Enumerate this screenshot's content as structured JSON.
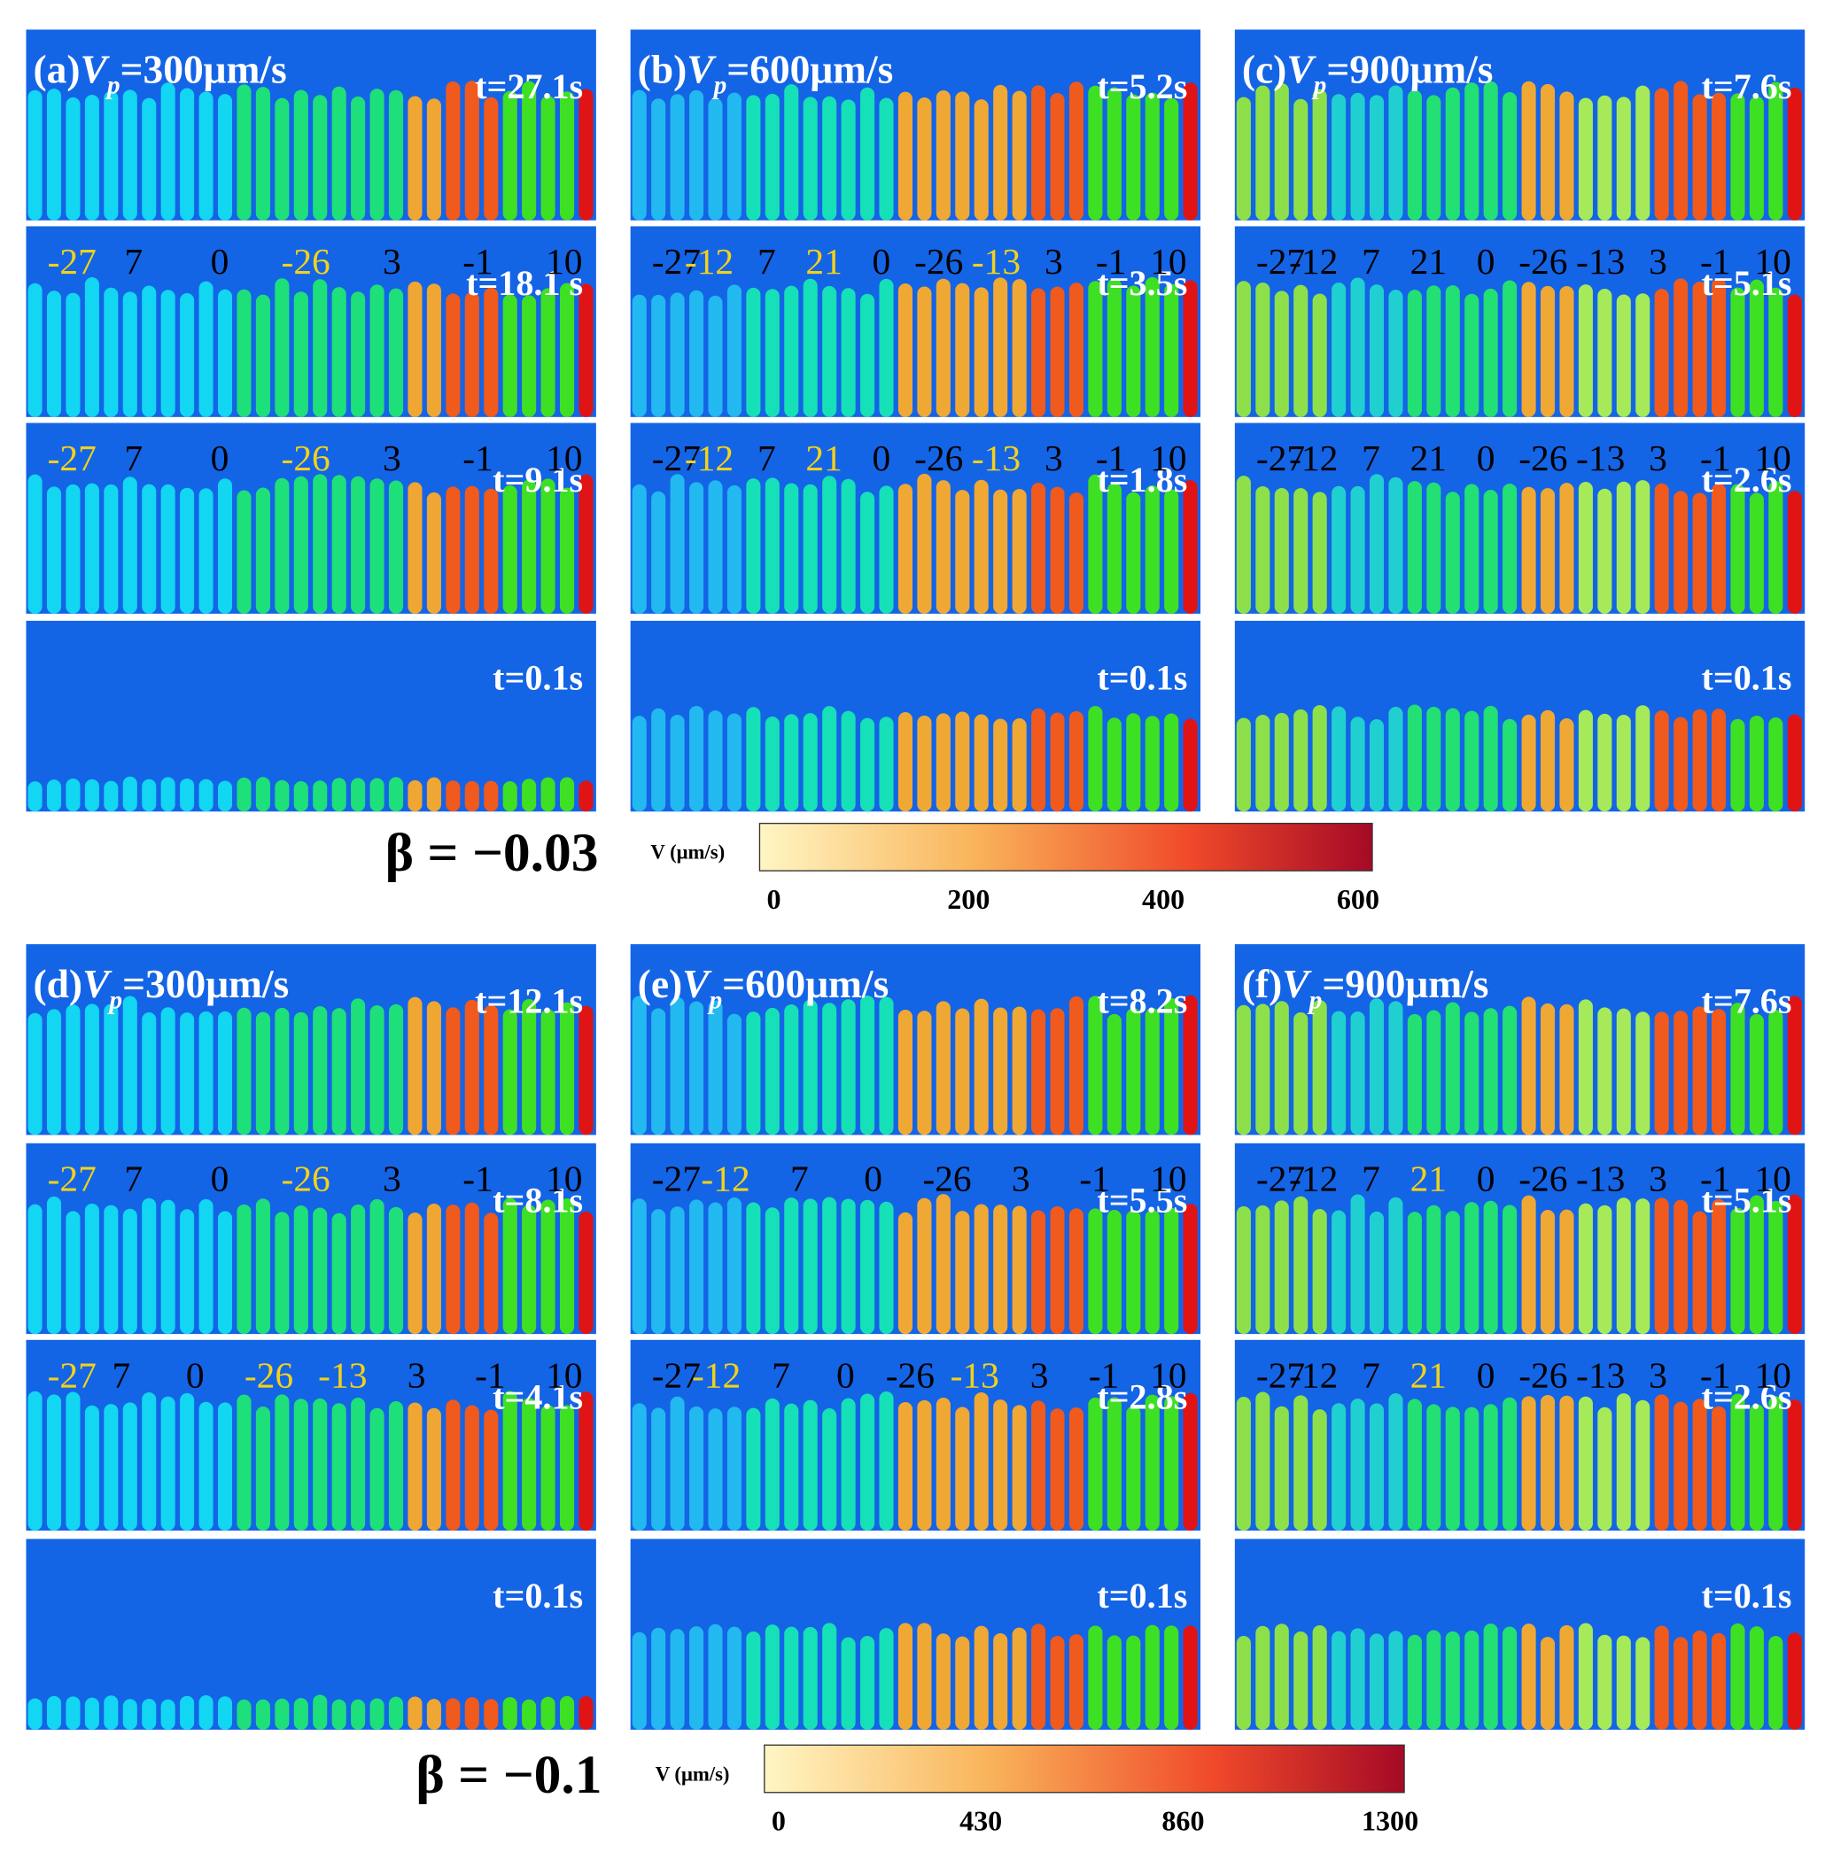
{
  "groups": [
    {
      "beta": "β = −0.03",
      "colorbar": {
        "label": "V (μm/s)",
        "ticks": [
          0,
          200,
          400,
          600
        ]
      },
      "panels": [
        {
          "label": "(a)",
          "var": "V",
          "sub": "p",
          "speed": "=300μm/s",
          "frames": [
            {
              "time": "t=27.1s",
              "grains": []
            },
            {
              "time": "t=18.1 s",
              "grains": [
                {
                  "text": "-27",
                  "color": "#f2d21a"
                },
                {
                  "text": "7",
                  "color": "#000000"
                },
                {
                  "text": "0",
                  "color": "#000000"
                },
                {
                  "text": "-26",
                  "color": "#f2d21a"
                },
                {
                  "text": "3",
                  "color": "#000000"
                },
                {
                  "text": "-1",
                  "color": "#000000"
                },
                {
                  "text": "10",
                  "color": "#000000"
                }
              ]
            },
            {
              "time": "t=9.1s",
              "grains": [
                {
                  "text": "-27",
                  "color": "#f2d21a"
                },
                {
                  "text": "7",
                  "color": "#000000"
                },
                {
                  "text": "0",
                  "color": "#000000"
                },
                {
                  "text": "-26",
                  "color": "#f2d21a"
                },
                {
                  "text": "3",
                  "color": "#000000"
                },
                {
                  "text": "-1",
                  "color": "#000000"
                },
                {
                  "text": "10",
                  "color": "#000000"
                }
              ]
            },
            {
              "time": "t=0.1s",
              "grains": []
            }
          ]
        },
        {
          "label": "(b)",
          "var": "V",
          "sub": "p",
          "speed": "=600μm/s",
          "frames": [
            {
              "time": "t=5.2s",
              "grains": []
            },
            {
              "time": "t=3.5s",
              "grains": [
                {
                  "text": "-27",
                  "color": "#000000"
                },
                {
                  "text": "-12",
                  "color": "#f2d21a"
                },
                {
                  "text": "7",
                  "color": "#000000"
                },
                {
                  "text": "21",
                  "color": "#f2d21a"
                },
                {
                  "text": "0",
                  "color": "#000000"
                },
                {
                  "text": "-26",
                  "color": "#000000"
                },
                {
                  "text": "-13",
                  "color": "#f2d21a"
                },
                {
                  "text": "3",
                  "color": "#000000"
                },
                {
                  "text": "-1",
                  "color": "#000000"
                },
                {
                  "text": "10",
                  "color": "#000000"
                }
              ]
            },
            {
              "time": "t=1.8s",
              "grains": [
                {
                  "text": "-27",
                  "color": "#000000"
                },
                {
                  "text": "-12",
                  "color": "#f2d21a"
                },
                {
                  "text": "7",
                  "color": "#000000"
                },
                {
                  "text": "21",
                  "color": "#f2d21a"
                },
                {
                  "text": "0",
                  "color": "#000000"
                },
                {
                  "text": "-26",
                  "color": "#000000"
                },
                {
                  "text": "-13",
                  "color": "#f2d21a"
                },
                {
                  "text": "3",
                  "color": "#000000"
                },
                {
                  "text": "-1",
                  "color": "#000000"
                },
                {
                  "text": "10",
                  "color": "#000000"
                }
              ]
            },
            {
              "time": "t=0.1s",
              "grains": []
            }
          ]
        },
        {
          "label": "(c)",
          "var": "V",
          "sub": "p",
          "speed": "=900μm/s",
          "frames": [
            {
              "time": "t=7.6s",
              "grains": []
            },
            {
              "time": "t=5.1s",
              "grains": [
                {
                  "text": "-27",
                  "color": "#000000"
                },
                {
                  "text": "-12",
                  "color": "#000000"
                },
                {
                  "text": "7",
                  "color": "#000000"
                },
                {
                  "text": "21",
                  "color": "#000000"
                },
                {
                  "text": "0",
                  "color": "#000000"
                },
                {
                  "text": "-26",
                  "color": "#000000"
                },
                {
                  "text": "-13",
                  "color": "#000000"
                },
                {
                  "text": "3",
                  "color": "#000000"
                },
                {
                  "text": "-1",
                  "color": "#000000"
                },
                {
                  "text": "10",
                  "color": "#000000"
                }
              ]
            },
            {
              "time": "t=2.6s",
              "grains": [
                {
                  "text": "-27",
                  "color": "#000000"
                },
                {
                  "text": "-12",
                  "color": "#000000"
                },
                {
                  "text": "7",
                  "color": "#000000"
                },
                {
                  "text": "21",
                  "color": "#000000"
                },
                {
                  "text": "0",
                  "color": "#000000"
                },
                {
                  "text": "-26",
                  "color": "#000000"
                },
                {
                  "text": "-13",
                  "color": "#000000"
                },
                {
                  "text": "3",
                  "color": "#000000"
                },
                {
                  "text": "-1",
                  "color": "#000000"
                },
                {
                  "text": "10",
                  "color": "#000000"
                }
              ]
            },
            {
              "time": "t=0.1s",
              "grains": []
            }
          ]
        }
      ]
    },
    {
      "beta": "β = −0.1",
      "colorbar": {
        "label": "V (μm/s)",
        "ticks": [
          0,
          430,
          860,
          1300
        ]
      },
      "panels": [
        {
          "label": "(d)",
          "var": "V",
          "sub": "p",
          "speed": "=300μm/s",
          "frames": [
            {
              "time": "t=12.1s",
              "grains": []
            },
            {
              "time": "t=8.1s",
              "grains": [
                {
                  "text": "-27",
                  "color": "#f2d21a"
                },
                {
                  "text": "7",
                  "color": "#000000"
                },
                {
                  "text": "0",
                  "color": "#000000"
                },
                {
                  "text": "-26",
                  "color": "#f2d21a"
                },
                {
                  "text": "3",
                  "color": "#000000"
                },
                {
                  "text": "-1",
                  "color": "#000000"
                },
                {
                  "text": "10",
                  "color": "#000000"
                }
              ]
            },
            {
              "time": "t=4.1s",
              "grains": [
                {
                  "text": "-27",
                  "color": "#f2d21a"
                },
                {
                  "text": "7",
                  "color": "#000000"
                },
                {
                  "text": "0",
                  "color": "#000000"
                },
                {
                  "text": "-26",
                  "color": "#f2d21a"
                },
                {
                  "text": "-13",
                  "color": "#f2d21a"
                },
                {
                  "text": "3",
                  "color": "#000000"
                },
                {
                  "text": "-1",
                  "color": "#000000"
                },
                {
                  "text": "10",
                  "color": "#000000"
                }
              ]
            },
            {
              "time": "t=0.1s",
              "grains": []
            }
          ]
        },
        {
          "label": "(e)",
          "var": "V",
          "sub": "p",
          "speed": "=600μm/s",
          "frames": [
            {
              "time": "t=8.2s",
              "grains": []
            },
            {
              "time": "t=5.5s",
              "grains": [
                {
                  "text": "-27",
                  "color": "#000000"
                },
                {
                  "text": "-12",
                  "color": "#f2d21a"
                },
                {
                  "text": "7",
                  "color": "#000000"
                },
                {
                  "text": "0",
                  "color": "#000000"
                },
                {
                  "text": "-26",
                  "color": "#000000"
                },
                {
                  "text": "3",
                  "color": "#000000"
                },
                {
                  "text": "-1",
                  "color": "#000000"
                },
                {
                  "text": "10",
                  "color": "#000000"
                }
              ]
            },
            {
              "time": "t=2.8s",
              "grains": [
                {
                  "text": "-27",
                  "color": "#000000"
                },
                {
                  "text": "-12",
                  "color": "#f2d21a"
                },
                {
                  "text": "7",
                  "color": "#000000"
                },
                {
                  "text": "0",
                  "color": "#000000"
                },
                {
                  "text": "-26",
                  "color": "#000000"
                },
                {
                  "text": "-13",
                  "color": "#f2d21a"
                },
                {
                  "text": "3",
                  "color": "#000000"
                },
                {
                  "text": "-1",
                  "color": "#000000"
                },
                {
                  "text": "10",
                  "color": "#000000"
                }
              ]
            },
            {
              "time": "t=0.1s",
              "grains": []
            }
          ]
        },
        {
          "label": "(f)",
          "var": "V",
          "sub": "p",
          "speed": "=900μm/s",
          "frames": [
            {
              "time": "t=7.6s",
              "grains": []
            },
            {
              "time": "t=5.1s",
              "grains": [
                {
                  "text": "-27",
                  "color": "#000000"
                },
                {
                  "text": "-12",
                  "color": "#000000"
                },
                {
                  "text": "7",
                  "color": "#000000"
                },
                {
                  "text": "21",
                  "color": "#f2d21a"
                },
                {
                  "text": "0",
                  "color": "#000000"
                },
                {
                  "text": "-26",
                  "color": "#000000"
                },
                {
                  "text": "-13",
                  "color": "#000000"
                },
                {
                  "text": "3",
                  "color": "#000000"
                },
                {
                  "text": "-1",
                  "color": "#000000"
                },
                {
                  "text": "10",
                  "color": "#000000"
                }
              ]
            },
            {
              "time": "t=2.6s",
              "grains": [
                {
                  "text": "-27",
                  "color": "#000000"
                },
                {
                  "text": "-12",
                  "color": "#000000"
                },
                {
                  "text": "7",
                  "color": "#000000"
                },
                {
                  "text": "21",
                  "color": "#f2d21a"
                },
                {
                  "text": "0",
                  "color": "#000000"
                },
                {
                  "text": "-26",
                  "color": "#000000"
                },
                {
                  "text": "-13",
                  "color": "#000000"
                },
                {
                  "text": "3",
                  "color": "#000000"
                },
                {
                  "text": "-1",
                  "color": "#000000"
                },
                {
                  "text": "10",
                  "color": "#000000"
                }
              ]
            },
            {
              "time": "t=0.1s",
              "grains": []
            }
          ]
        }
      ]
    }
  ]
}
